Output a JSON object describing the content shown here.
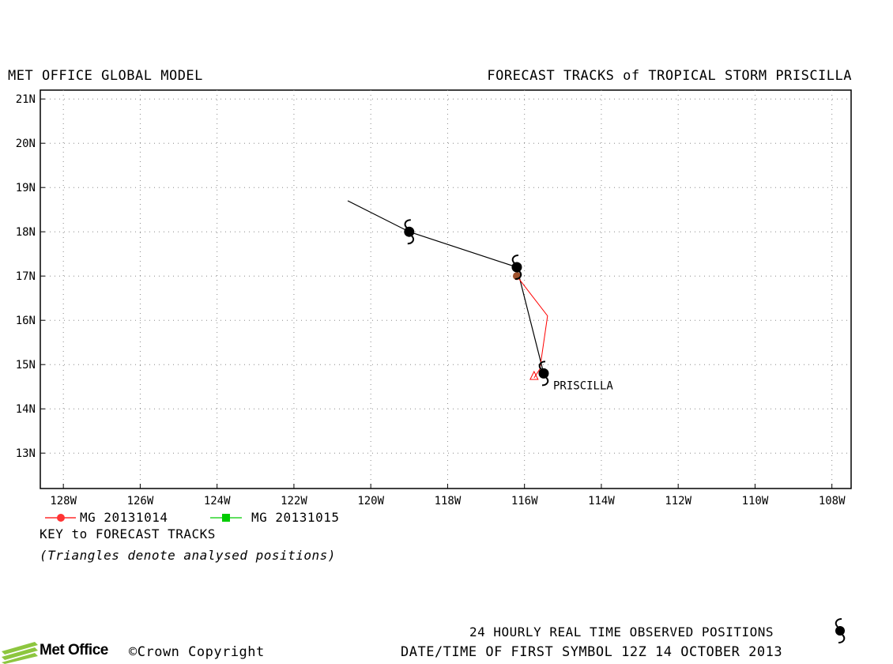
{
  "header": {
    "left_title": "MET OFFICE GLOBAL MODEL",
    "right_title": "FORECAST TRACKS of TROPICAL STORM PRISCILLA"
  },
  "map": {
    "lat_labels": [
      "21N",
      "20N",
      "19N",
      "18N",
      "17N",
      "16N",
      "15N",
      "14N",
      "13N"
    ],
    "lon_labels": [
      "128W",
      "126W",
      "124W",
      "122W",
      "120W",
      "118W",
      "116W",
      "114W",
      "112W",
      "110W",
      "108W"
    ],
    "storm_label": "PRISCILLA"
  },
  "chart_data": {
    "type": "scatter",
    "title": "FORECAST TRACKS of TROPICAL STORM PRISCILLA",
    "xlim": [
      -128.6,
      -107.5
    ],
    "ylim": [
      12.2,
      21.2
    ],
    "grid": true,
    "observed_track": {
      "points": [
        [
          -120.6,
          18.7
        ],
        [
          -119.0,
          18.0
        ],
        [
          -116.2,
          17.2
        ],
        [
          -115.5,
          14.8
        ]
      ],
      "storm_symbol_points": [
        [
          -119.0,
          18.0
        ],
        [
          -116.2,
          17.2
        ],
        [
          -115.5,
          14.8
        ]
      ],
      "color": "#000000"
    },
    "series": [
      {
        "name": "MG 20131014",
        "color": "#ff0000",
        "analysed_position": [
          -115.75,
          14.7
        ],
        "points": [
          [
            -116.2,
            17.0
          ],
          [
            -115.4,
            16.1
          ],
          [
            -115.6,
            14.9
          ],
          [
            -115.75,
            14.7
          ]
        ]
      },
      {
        "name": "MG 20131015",
        "color": "#00cc00",
        "points": []
      }
    ]
  },
  "key": {
    "legend_1": "MG 20131014",
    "legend_2": "MG 20131015",
    "title": "KEY to FORECAST TRACKS",
    "note": "(Triangles denote analysed positions)"
  },
  "footer": {
    "observed_text": "24 HOURLY REAL TIME OBSERVED POSITIONS",
    "date_text": "DATE/TIME OF FIRST SYMBOL 12Z 14 OCTOBER 2013",
    "logo_text": "Met Office",
    "copyright": "©Crown Copyright"
  },
  "colors": {
    "red_track": "#ff0000",
    "green_track": "#00cc00",
    "dot_fill": "#a0522d",
    "logo_green": "#8dc63f"
  }
}
